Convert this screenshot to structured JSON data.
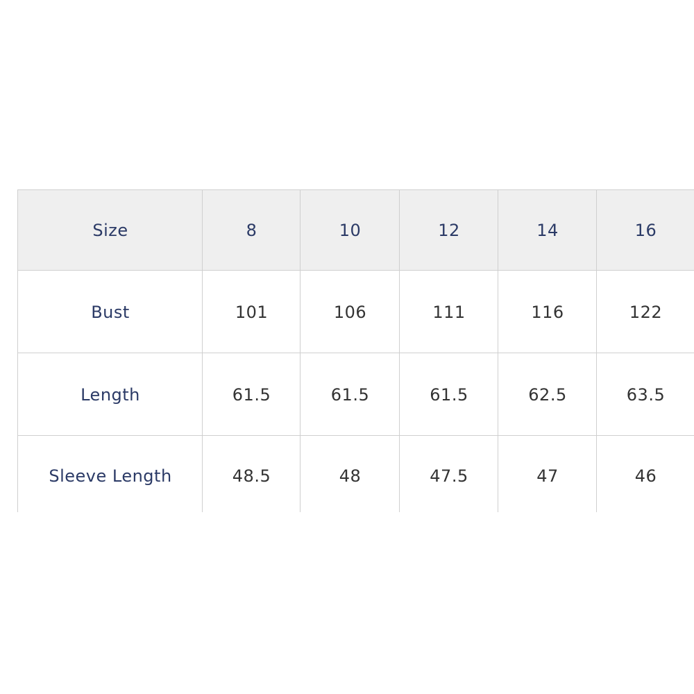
{
  "table": {
    "header": [
      "Size",
      "8",
      "10",
      "12",
      "14",
      "16"
    ],
    "rows": [
      [
        "Bust",
        "101",
        "106",
        "111",
        "116",
        "122"
      ],
      [
        "Length",
        "61.5",
        "61.5",
        "61.5",
        "62.5",
        "63.5"
      ],
      [
        "Sleeve Length",
        "48.5",
        "48",
        "47.5",
        "47",
        "46"
      ]
    ]
  }
}
